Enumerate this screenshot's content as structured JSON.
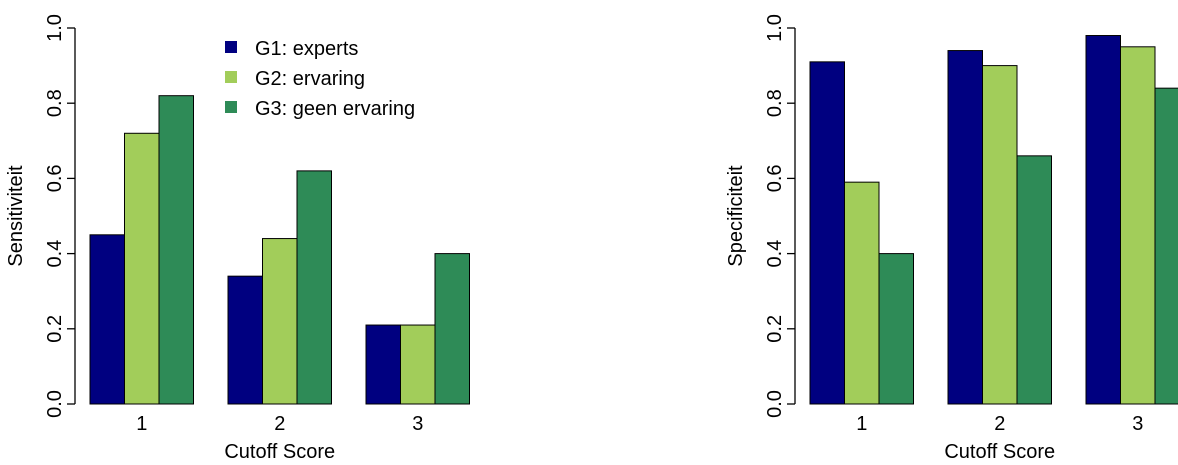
{
  "chart_data": [
    {
      "type": "bar",
      "title": "",
      "xlabel": "Cutoff Score",
      "ylabel": "Sensitiviteit",
      "ylim": [
        0,
        1
      ],
      "yticks": [
        "0.0",
        "0.2",
        "0.4",
        "0.6",
        "0.8",
        "1.0"
      ],
      "categories": [
        "1",
        "2",
        "3"
      ],
      "grid": false,
      "legend": "top-center",
      "series": [
        {
          "name": "G1: experts",
          "color": "#000080",
          "values": [
            0.45,
            0.34,
            0.21
          ]
        },
        {
          "name": "G2: ervaring",
          "color": "#a2cd5a",
          "values": [
            0.72,
            0.44,
            0.21
          ]
        },
        {
          "name": "G3: geen ervaring",
          "color": "#2e8b57",
          "values": [
            0.82,
            0.62,
            0.4
          ]
        }
      ]
    },
    {
      "type": "bar",
      "title": "",
      "xlabel": "Cutoff Score",
      "ylabel": "Specificiteit",
      "ylim": [
        0,
        1
      ],
      "yticks": [
        "0.0",
        "0.2",
        "0.4",
        "0.6",
        "0.8",
        "1.0"
      ],
      "categories": [
        "1",
        "2",
        "3"
      ],
      "grid": false,
      "legend": "none",
      "series": [
        {
          "name": "G1: experts",
          "color": "#000080",
          "values": [
            0.91,
            0.94,
            0.98
          ]
        },
        {
          "name": "G2: ervaring",
          "color": "#a2cd5a",
          "values": [
            0.59,
            0.9,
            0.95
          ]
        },
        {
          "name": "G3: geen ervaring",
          "color": "#2e8b57",
          "values": [
            0.4,
            0.66,
            0.84
          ]
        }
      ]
    }
  ]
}
